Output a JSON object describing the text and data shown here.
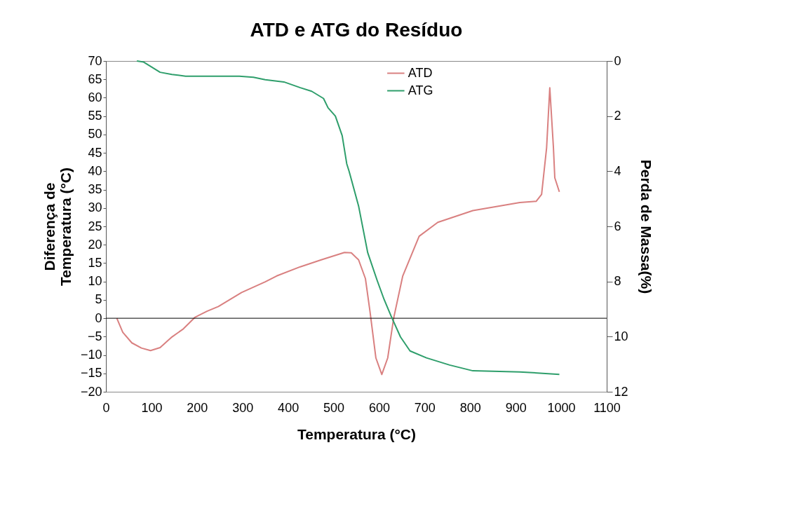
{
  "chart_data": {
    "type": "line",
    "title": "ATD e ATG do Resíduo",
    "xlabel": "Temperatura (°C)",
    "ylabel": [
      "Diferença de",
      "Temperatura (°C)"
    ],
    "y2label": "Perda de Massa(%)",
    "xlim": [
      0,
      1100
    ],
    "xticks": [
      0,
      100,
      200,
      300,
      400,
      500,
      600,
      700,
      800,
      900,
      1000,
      1100
    ],
    "ylim": [
      -20,
      70
    ],
    "yticks": [
      -20,
      -15,
      -10,
      -5,
      0,
      5,
      10,
      15,
      20,
      25,
      30,
      35,
      40,
      45,
      50,
      55,
      60,
      65,
      70
    ],
    "y2lim": [
      12,
      0
    ],
    "y2ticks": [
      0,
      2,
      4,
      6,
      8,
      10,
      12
    ],
    "grid": false,
    "legend": "top right",
    "line_style": "solid",
    "marker": "none",
    "ref_lines": [
      {
        "axis": "y",
        "value": 0,
        "label": null,
        "color": "#000000"
      }
    ],
    "series": [
      {
        "name": "ATD",
        "color": "#d98080",
        "x": [
          24,
          37,
          57,
          78,
          98,
          119,
          145,
          170,
          196,
          222,
          247,
          298,
          350,
          375,
          427,
          473,
          524,
          539,
          555,
          570,
          580,
          593,
          606,
          619,
          632,
          652,
          688,
          729,
          806,
          909,
          945,
          957,
          968,
          975,
          983,
          986,
          996
        ],
        "values": [
          0,
          -3.8,
          -6.7,
          -8.1,
          -8.8,
          -8.0,
          -5.1,
          -2.9,
          0.3,
          1.9,
          3.2,
          7.0,
          9.9,
          11.5,
          14.0,
          15.9,
          17.9,
          17.8,
          15.9,
          10.8,
          1.9,
          -10.8,
          -15.3,
          -10.8,
          0,
          11.5,
          22.3,
          26.1,
          29.3,
          31.5,
          31.8,
          33.7,
          46.4,
          62.7,
          46.4,
          38.2,
          34.4
        ]
      },
      {
        "name": "ATG",
        "color": "#2e9e6b",
        "axis": "y2",
        "x": [
          68,
          83,
          119,
          145,
          175,
          222,
          293,
          324,
          350,
          391,
          427,
          452,
          478,
          488,
          504,
          519,
          529,
          534,
          555,
          575,
          596,
          611,
          626,
          647,
          668,
          704,
          755,
          806,
          909,
          996
        ],
        "values": [
          0,
          0.04,
          0.41,
          0.49,
          0.55,
          0.55,
          0.55,
          0.59,
          0.68,
          0.76,
          0.97,
          1.1,
          1.36,
          1.7,
          2.0,
          2.71,
          3.73,
          3.99,
          5.26,
          6.95,
          7.97,
          8.65,
          9.24,
          10.01,
          10.52,
          10.77,
          11.03,
          11.24,
          11.28,
          11.37
        ]
      }
    ]
  }
}
